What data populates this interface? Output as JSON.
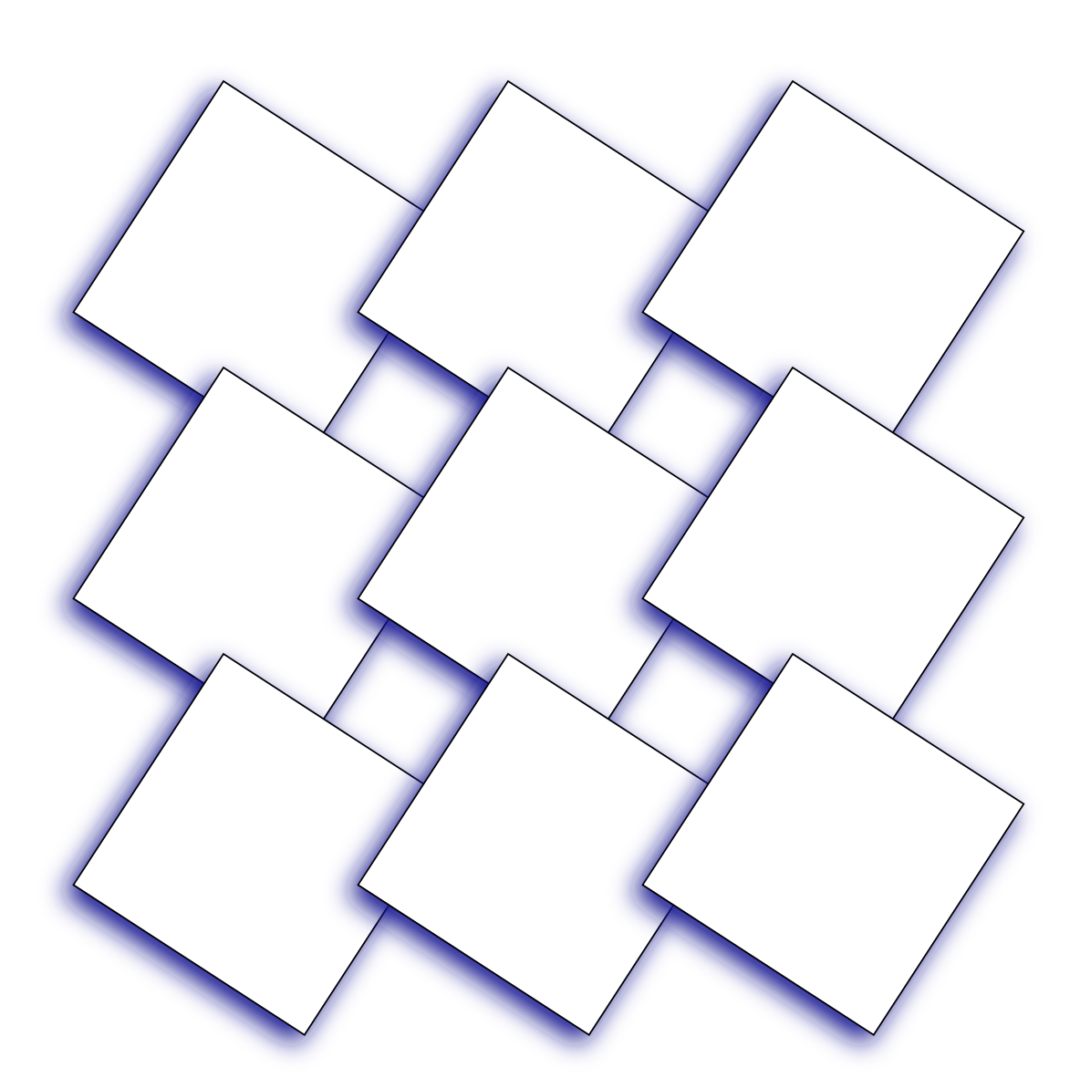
{
  "diagram": {
    "kind": "tiled-rotated-squares",
    "grid": {
      "rows": 3,
      "columns": 3
    },
    "tile_count": 9,
    "rotation_degrees": 33,
    "colors": {
      "background": "#ffffff",
      "tile_fill": "#ffffff",
      "tile_outline": "#000000",
      "glow": "#15158f"
    },
    "glow_visible": true
  }
}
